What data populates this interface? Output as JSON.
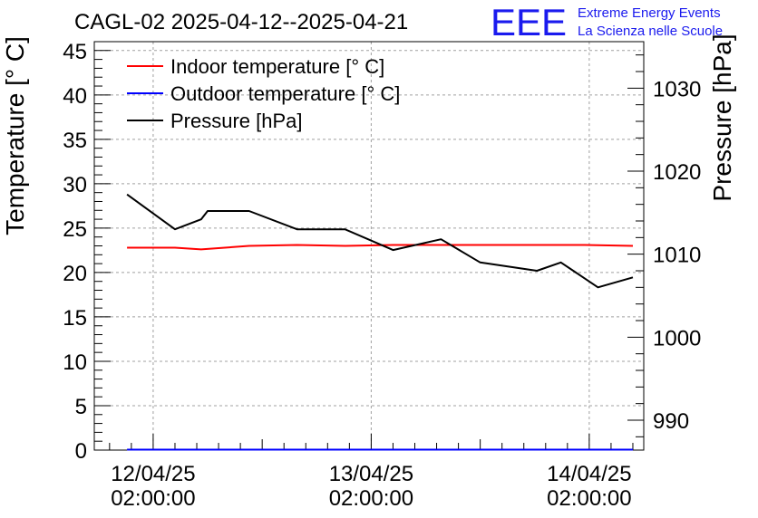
{
  "chart_data": {
    "type": "line",
    "title": "CAGL-02 2025-04-12--2025-04-21",
    "logo": {
      "mark": "EEE",
      "line1": "Extreme Energy Events",
      "line2": "La Scienza nelle Scuole",
      "color": "#1a1aee"
    },
    "ylabel": "Temperature [° C]",
    "y2label": "Pressure [hPa]",
    "ylim": [
      0,
      46
    ],
    "y2lim": [
      986.4,
      1035.6
    ],
    "yticks": [
      0,
      5,
      10,
      15,
      20,
      25,
      30,
      35,
      40,
      45
    ],
    "y2ticks": [
      990,
      1000,
      1010,
      1020,
      1030
    ],
    "xlim": [
      -0.27,
      2.25
    ],
    "xticks": [
      {
        "value": 0,
        "line1": "12/04/25",
        "line2": "02:00:00"
      },
      {
        "value": 1,
        "line1": "13/04/25",
        "line2": "02:00:00"
      },
      {
        "value": 2,
        "line1": "14/04/25",
        "line2": "02:00:00"
      }
    ],
    "grid": true,
    "legend_position": "top-left",
    "series": [
      {
        "name": "Indoor temperature [° C]",
        "axis": "left",
        "color": "#ff0000",
        "x": [
          -0.12,
          0.0,
          0.1,
          0.22,
          0.44,
          0.66,
          0.88,
          1.1,
          1.32,
          1.54,
          1.76,
          1.98,
          2.2
        ],
        "y": [
          22.8,
          22.8,
          22.8,
          22.6,
          23.0,
          23.1,
          23.0,
          23.1,
          23.1,
          23.1,
          23.1,
          23.1,
          23.0
        ]
      },
      {
        "name": "Outdoor temperature [° C]",
        "axis": "left",
        "color": "#0000ff",
        "x": [
          -0.12,
          2.2
        ],
        "y": [
          0.05,
          0.05
        ]
      },
      {
        "name": "Pressure [hPa]",
        "axis": "right",
        "color": "#000000",
        "x": [
          -0.12,
          0.1,
          0.22,
          0.25,
          0.36,
          0.44,
          0.66,
          0.88,
          1.1,
          1.32,
          1.5,
          1.76,
          1.87,
          2.04,
          2.2
        ],
        "y": [
          1017.2,
          1013.0,
          1014.2,
          1015.2,
          1015.2,
          1015.2,
          1013.0,
          1013.0,
          1010.5,
          1011.8,
          1009.0,
          1008.0,
          1009.0,
          1006.0,
          1007.2
        ]
      }
    ]
  }
}
